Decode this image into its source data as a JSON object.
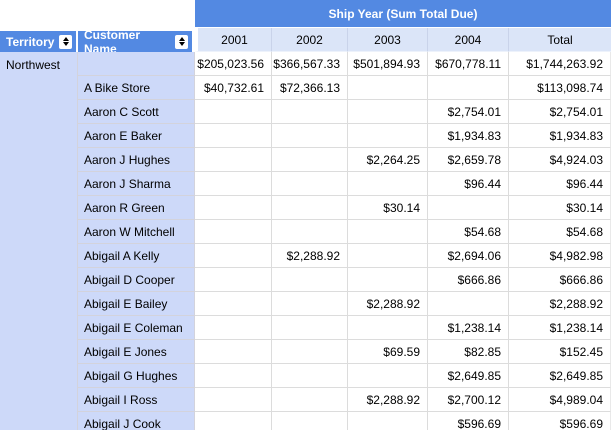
{
  "pivot": {
    "column_field_caption": "Ship Year (Sum Total Due)",
    "row_fields": [
      {
        "label": "Territory",
        "sort_icon": "sort-updown-icon"
      },
      {
        "label": "Customer Name",
        "sort_icon": "sort-updown-icon"
      }
    ],
    "column_headers": [
      "2001",
      "2002",
      "2003",
      "2004",
      "Total"
    ],
    "territory": "Northwest",
    "rows": [
      {
        "customer": "",
        "values": [
          "$205,023.56",
          "$366,567.33",
          "$501,894.93",
          "$670,778.11",
          "$1,744,263.92"
        ]
      },
      {
        "customer": "A Bike Store",
        "values": [
          "$40,732.61",
          "$72,366.13",
          "",
          "",
          "$113,098.74"
        ]
      },
      {
        "customer": "Aaron C Scott",
        "values": [
          "",
          "",
          "",
          "$2,754.01",
          "$2,754.01"
        ]
      },
      {
        "customer": "Aaron E Baker",
        "values": [
          "",
          "",
          "",
          "$1,934.83",
          "$1,934.83"
        ]
      },
      {
        "customer": "Aaron J Hughes",
        "values": [
          "",
          "",
          "$2,264.25",
          "$2,659.78",
          "$4,924.03"
        ]
      },
      {
        "customer": "Aaron J Sharma",
        "values": [
          "",
          "",
          "",
          "$96.44",
          "$96.44"
        ]
      },
      {
        "customer": "Aaron R Green",
        "values": [
          "",
          "",
          "$30.14",
          "",
          "$30.14"
        ]
      },
      {
        "customer": "Aaron W Mitchell",
        "values": [
          "",
          "",
          "",
          "$54.68",
          "$54.68"
        ]
      },
      {
        "customer": "Abigail A Kelly",
        "values": [
          "",
          "$2,288.92",
          "",
          "$2,694.06",
          "$4,982.98"
        ]
      },
      {
        "customer": "Abigail D Cooper",
        "values": [
          "",
          "",
          "",
          "$666.86",
          "$666.86"
        ]
      },
      {
        "customer": "Abigail E Bailey",
        "values": [
          "",
          "",
          "$2,288.92",
          "",
          "$2,288.92"
        ]
      },
      {
        "customer": "Abigail E Coleman",
        "values": [
          "",
          "",
          "",
          "$1,238.14",
          "$1,238.14"
        ]
      },
      {
        "customer": "Abigail E Jones",
        "values": [
          "",
          "",
          "$69.59",
          "$82.85",
          "$152.45"
        ]
      },
      {
        "customer": "Abigail G Hughes",
        "values": [
          "",
          "",
          "",
          "$2,649.85",
          "$2,649.85"
        ]
      },
      {
        "customer": "Abigail I Ross",
        "values": [
          "",
          "",
          "$2,288.92",
          "$2,700.12",
          "$4,989.04"
        ]
      },
      {
        "customer": "Abigail J Cook",
        "values": [
          "",
          "",
          "",
          "$596.69",
          "$596.69"
        ]
      }
    ]
  },
  "colors": {
    "header_blue": "#5389E2",
    "column_header_bg": "#DBE5F8",
    "row_header_bg": "#CDD9F9",
    "gridline": "#DCDCDC",
    "header_text": "#FFFFFF",
    "cell_text": "#000000"
  }
}
